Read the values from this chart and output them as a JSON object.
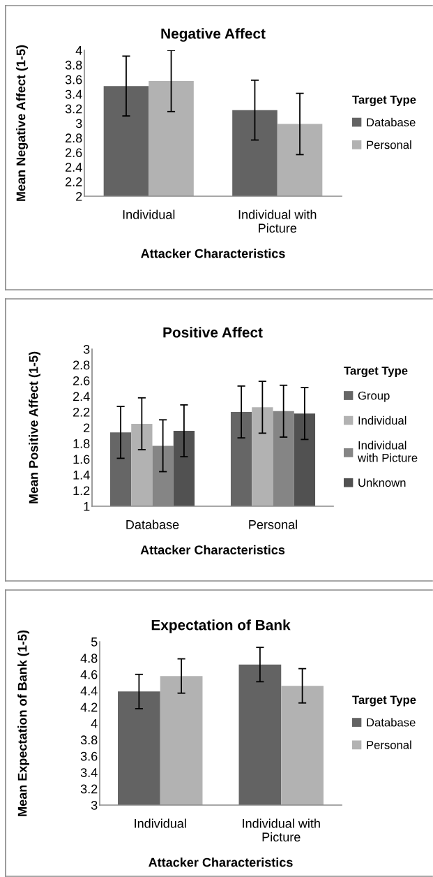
{
  "chart_data": [
    {
      "type": "bar",
      "title": "Negative Affect",
      "xlabel": "Attacker Characteristics",
      "ylabel": "Mean Negative Affect (1-5)",
      "legend_title": "Target Type",
      "legend": "right",
      "grid": false,
      "categories": [
        "Individual",
        "Individual with Picture"
      ],
      "ylim": [
        2,
        4
      ],
      "yticks": [
        2,
        2.2,
        2.4,
        2.6,
        2.8,
        3,
        3.2,
        3.4,
        3.6,
        3.8,
        4
      ],
      "series": [
        {
          "name": "Database",
          "color": "#636363",
          "values": [
            3.51,
            3.18
          ],
          "errors": [
            0.41,
            0.41
          ]
        },
        {
          "name": "Personal",
          "color": "#b2b2b2",
          "values": [
            3.58,
            2.99
          ],
          "errors": [
            0.42,
            0.42
          ]
        }
      ]
    },
    {
      "type": "bar",
      "title": "Positive Affect",
      "xlabel": "Attacker Characteristics",
      "ylabel": "Mean Positive Affect (1-5)",
      "legend_title": "Target Type",
      "legend": "right",
      "grid": false,
      "categories": [
        "Database",
        "Personal"
      ],
      "ylim": [
        1,
        3
      ],
      "yticks": [
        1,
        1.2,
        1.4,
        1.6,
        1.8,
        2,
        2.2,
        2.4,
        2.6,
        2.8,
        3
      ],
      "series": [
        {
          "name": "Group",
          "color": "#666666",
          "values": [
            1.94,
            2.2
          ],
          "errors": [
            0.33,
            0.33
          ]
        },
        {
          "name": "Individual",
          "color": "#b2b2b2",
          "values": [
            2.05,
            2.26
          ],
          "errors": [
            0.33,
            0.33
          ]
        },
        {
          "name": "Individual with Picture",
          "color": "#858585",
          "values": [
            1.77,
            2.21
          ],
          "errors": [
            0.33,
            0.33
          ]
        },
        {
          "name": "Unknown",
          "color": "#515151",
          "values": [
            1.96,
            2.18
          ],
          "errors": [
            0.33,
            0.33
          ]
        }
      ]
    },
    {
      "type": "bar",
      "title": "Expectation of Bank",
      "xlabel": "Attacker Characteristics",
      "ylabel": "Mean Expectation of Bank (1-5)",
      "legend_title": "Target Type",
      "legend": "right",
      "grid": false,
      "categories": [
        "Individual",
        "Individual with Picture"
      ],
      "ylim": [
        3,
        5
      ],
      "yticks": [
        3,
        3.2,
        3.4,
        3.6,
        3.8,
        4,
        4.2,
        4.4,
        4.6,
        4.8,
        5
      ],
      "series": [
        {
          "name": "Database",
          "color": "#636363",
          "values": [
            4.39,
            4.72
          ],
          "errors": [
            0.21,
            0.21
          ]
        },
        {
          "name": "Personal",
          "color": "#b2b2b2",
          "values": [
            4.58,
            4.46
          ],
          "errors": [
            0.21,
            0.21
          ]
        }
      ]
    }
  ]
}
